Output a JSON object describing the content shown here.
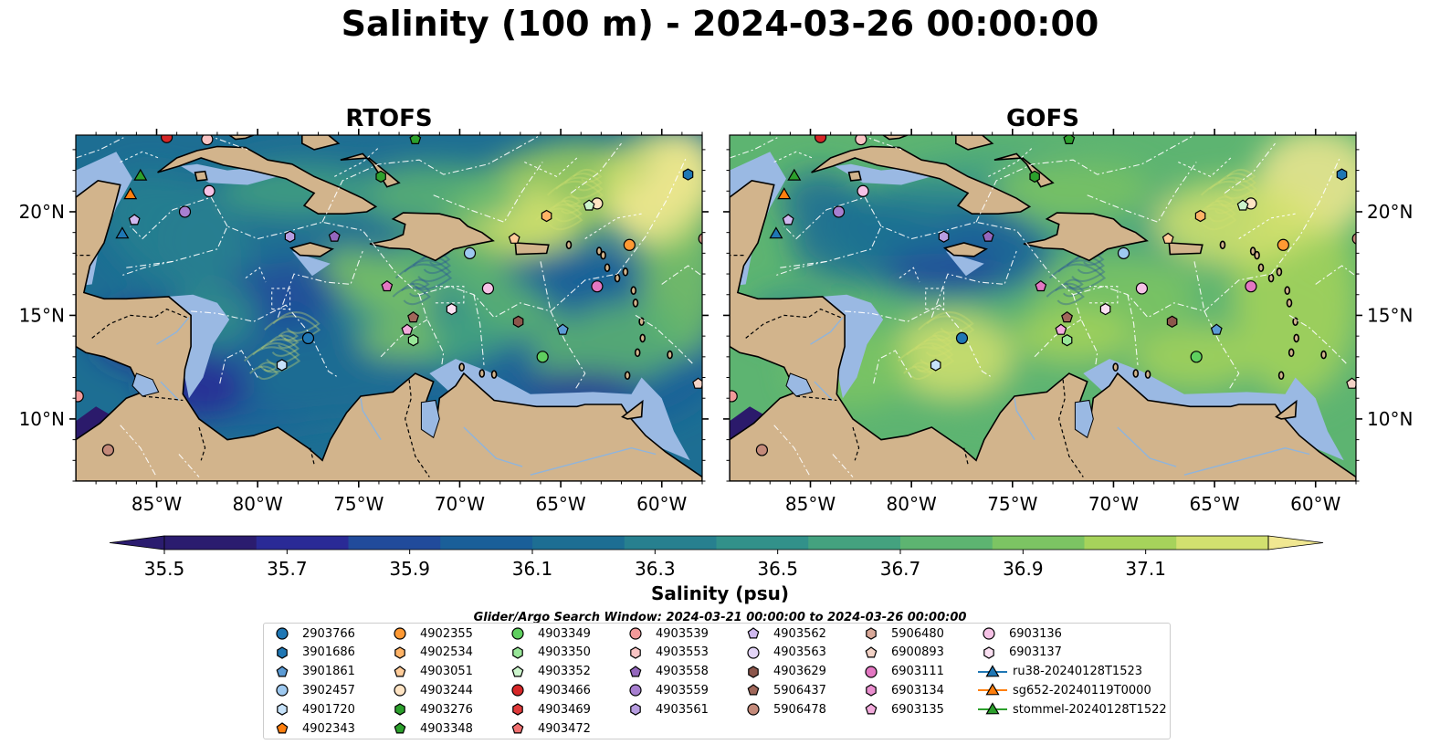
{
  "title": "Salinity (100 m) - 2024-03-26 00:00:00",
  "panels": [
    {
      "title": "RTOFS",
      "model": "rtofs"
    },
    {
      "title": "GOFS",
      "model": "gofs"
    }
  ],
  "map": {
    "lon_labels": [
      "85°W",
      "80°W",
      "75°W",
      "70°W",
      "65°W",
      "60°W"
    ],
    "lat_labels": [
      "20°N",
      "15°N",
      "10°N"
    ],
    "extent": {
      "lon_min": -89,
      "lon_max": -58,
      "lat_min": 7,
      "lat_max": 23.7
    },
    "land_color": "#d2b48c",
    "shelf_color": "#9ab9e3",
    "pacific_color": "#2b1a6b"
  },
  "colorbar": {
    "label": "Salinity (psu)",
    "ticks": [
      "35.5",
      "35.7",
      "35.9",
      "36.1",
      "36.3",
      "36.5",
      "36.7",
      "36.9",
      "37.1"
    ],
    "vmin": 35.5,
    "vmax": 37.3,
    "colors": [
      "#2b1c6f",
      "#2a2a96",
      "#214b9b",
      "#1a5f99",
      "#1d6e93",
      "#27808f",
      "#32918a",
      "#44a27f",
      "#5db471",
      "#7cc463",
      "#a6d35b",
      "#d2e06f",
      "#f0e791"
    ]
  },
  "search_window": "Glider/Argo Search Window: 2024-03-21 00:00:00 to 2024-03-26 00:00:00",
  "legend": {
    "columns": [
      [
        {
          "label": "2903766",
          "marker": "circle",
          "color": "#1f77b4"
        },
        {
          "label": "3901686",
          "marker": "hexagon",
          "color": "#1f77b4"
        },
        {
          "label": "3901861",
          "marker": "pentagon",
          "color": "#5b9bd5"
        },
        {
          "label": "3902457",
          "marker": "circle",
          "color": "#9ec9f0"
        },
        {
          "label": "4901720",
          "marker": "hexagon",
          "color": "#c6e2fa"
        },
        {
          "label": "4902343",
          "marker": "pentagon",
          "color": "#ff7f0e"
        }
      ],
      [
        {
          "label": "4902355",
          "marker": "circle",
          "color": "#ff9933"
        },
        {
          "label": "4902534",
          "marker": "hexagon",
          "color": "#ffb366"
        },
        {
          "label": "4903051",
          "marker": "pentagon",
          "color": "#ffcc99"
        },
        {
          "label": "4903244",
          "marker": "circle",
          "color": "#ffe4c4"
        },
        {
          "label": "4903276",
          "marker": "hexagon",
          "color": "#2ca02c"
        },
        {
          "label": "4903348",
          "marker": "pentagon",
          "color": "#2ca02c"
        }
      ],
      [
        {
          "label": "4903349",
          "marker": "circle",
          "color": "#5fcf5f"
        },
        {
          "label": "4903350",
          "marker": "hexagon",
          "color": "#98e698"
        },
        {
          "label": "4903352",
          "marker": "pentagon",
          "color": "#ccf5cc"
        },
        {
          "label": "4903466",
          "marker": "circle",
          "color": "#d62728"
        },
        {
          "label": "4903469",
          "marker": "hexagon",
          "color": "#e03a3a"
        },
        {
          "label": "4903472",
          "marker": "pentagon",
          "color": "#f07070"
        }
      ],
      [
        {
          "label": "4903539",
          "marker": "circle",
          "color": "#f29a9a"
        },
        {
          "label": "4903553",
          "marker": "hexagon",
          "color": "#f9c4c4"
        },
        {
          "label": "4903558",
          "marker": "pentagon",
          "color": "#9467bd"
        },
        {
          "label": "4903559",
          "marker": "circle",
          "color": "#a77fd0"
        },
        {
          "label": "4903561",
          "marker": "hexagon",
          "color": "#b79de0"
        }
      ],
      [
        {
          "label": "4903562",
          "marker": "pentagon",
          "color": "#cfb8ef"
        },
        {
          "label": "4903563",
          "marker": "circle",
          "color": "#e3d4f7"
        },
        {
          "label": "4903629",
          "marker": "hexagon",
          "color": "#8c564b"
        },
        {
          "label": "5906437",
          "marker": "pentagon",
          "color": "#a0675a"
        },
        {
          "label": "5906478",
          "marker": "circle",
          "color": "#c48a7a"
        }
      ],
      [
        {
          "label": "5906480",
          "marker": "hexagon",
          "color": "#d9a898"
        },
        {
          "label": "6900893",
          "marker": "pentagon",
          "color": "#f3d3c6"
        },
        {
          "label": "6903111",
          "marker": "circle",
          "color": "#e377c2"
        },
        {
          "label": "6903134",
          "marker": "hexagon",
          "color": "#ea8fcf"
        },
        {
          "label": "6903135",
          "marker": "pentagon",
          "color": "#f2aadc"
        }
      ],
      [
        {
          "label": "6903136",
          "marker": "circle",
          "color": "#f6c2e6"
        },
        {
          "label": "6903137",
          "marker": "hexagon",
          "color": "#fbe0f2"
        },
        {
          "label": "ru38-20240128T1523",
          "marker": "triangle-line",
          "color": "#1f77b4"
        },
        {
          "label": "sg652-20240119T0000",
          "marker": "triangle-line",
          "color": "#ff7f0e"
        },
        {
          "label": "stommel-20240128T1522",
          "marker": "triangle-line",
          "color": "#2ca02c"
        }
      ]
    ]
  },
  "floats": [
    {
      "lon": -84.5,
      "lat": 23.6,
      "marker": "circle",
      "color": "#d62728"
    },
    {
      "lon": -82.5,
      "lat": 23.5,
      "marker": "circle",
      "color": "#f9c4c4"
    },
    {
      "lon": -72.2,
      "lat": 23.5,
      "marker": "pentagon",
      "color": "#2ca02c"
    },
    {
      "lon": -58.7,
      "lat": 21.8,
      "marker": "hexagon",
      "color": "#1f77b4"
    },
    {
      "lon": -73.9,
      "lat": 21.7,
      "marker": "hexagon",
      "color": "#2ca02c"
    },
    {
      "lon": -82.4,
      "lat": 21.0,
      "marker": "circle",
      "color": "#f6c2e6"
    },
    {
      "lon": -63.2,
      "lat": 20.4,
      "marker": "circle",
      "color": "#ffe4c4"
    },
    {
      "lon": -63.6,
      "lat": 20.3,
      "marker": "pentagon",
      "color": "#ccf5cc"
    },
    {
      "lon": -83.6,
      "lat": 20.0,
      "marker": "circle",
      "color": "#a77fd0"
    },
    {
      "lon": -65.7,
      "lat": 19.8,
      "marker": "hexagon",
      "color": "#ffb366"
    },
    {
      "lon": -86.1,
      "lat": 19.6,
      "marker": "pentagon",
      "color": "#cfb8ef"
    },
    {
      "lon": -78.4,
      "lat": 18.8,
      "marker": "hexagon",
      "color": "#b79de0"
    },
    {
      "lon": -76.2,
      "lat": 18.8,
      "marker": "pentagon",
      "color": "#9467bd"
    },
    {
      "lon": -67.3,
      "lat": 18.7,
      "marker": "pentagon",
      "color": "#ffcc99"
    },
    {
      "lon": -61.6,
      "lat": 18.4,
      "marker": "circle",
      "color": "#ff9933"
    },
    {
      "lon": -57.9,
      "lat": 18.7,
      "marker": "circle",
      "color": "#c48a7a"
    },
    {
      "lon": -69.5,
      "lat": 18.0,
      "marker": "circle",
      "color": "#9ec9f0"
    },
    {
      "lon": -73.6,
      "lat": 16.4,
      "marker": "pentagon",
      "color": "#e377c2"
    },
    {
      "lon": -68.6,
      "lat": 16.3,
      "marker": "circle",
      "color": "#f6c2e6"
    },
    {
      "lon": -63.2,
      "lat": 16.4,
      "marker": "circle",
      "color": "#e377c2"
    },
    {
      "lon": -70.4,
      "lat": 15.3,
      "marker": "hexagon",
      "color": "#fbe0f2"
    },
    {
      "lon": -72.3,
      "lat": 14.9,
      "marker": "pentagon",
      "color": "#a0675a"
    },
    {
      "lon": -67.1,
      "lat": 14.7,
      "marker": "hexagon",
      "color": "#8c564b"
    },
    {
      "lon": -72.6,
      "lat": 14.3,
      "marker": "pentagon",
      "color": "#f2aadc"
    },
    {
      "lon": -64.9,
      "lat": 14.3,
      "marker": "pentagon",
      "color": "#5b9bd5"
    },
    {
      "lon": -72.3,
      "lat": 13.8,
      "marker": "hexagon",
      "color": "#98e698"
    },
    {
      "lon": -77.5,
      "lat": 13.9,
      "marker": "circle",
      "color": "#1f77b4"
    },
    {
      "lon": -65.9,
      "lat": 13.0,
      "marker": "circle",
      "color": "#5fcf5f"
    },
    {
      "lon": -78.8,
      "lat": 12.6,
      "marker": "hexagon",
      "color": "#c6e2fa"
    },
    {
      "lon": -58.2,
      "lat": 11.7,
      "marker": "pentagon",
      "color": "#f3d3c6"
    },
    {
      "lon": -88.9,
      "lat": 11.1,
      "marker": "circle",
      "color": "#f29a9a"
    },
    {
      "lon": -87.4,
      "lat": 8.5,
      "marker": "circle",
      "color": "#c48a7a"
    },
    {
      "lon": -85.8,
      "lat": 21.7,
      "marker": "triangle",
      "color": "#2ca02c"
    },
    {
      "lon": -86.3,
      "lat": 20.8,
      "marker": "triangle",
      "color": "#ff7f0e"
    },
    {
      "lon": -86.7,
      "lat": 18.9,
      "marker": "triangle",
      "color": "#1f77b4"
    }
  ],
  "map_style": {
    "lw_coast": 1.6
  }
}
